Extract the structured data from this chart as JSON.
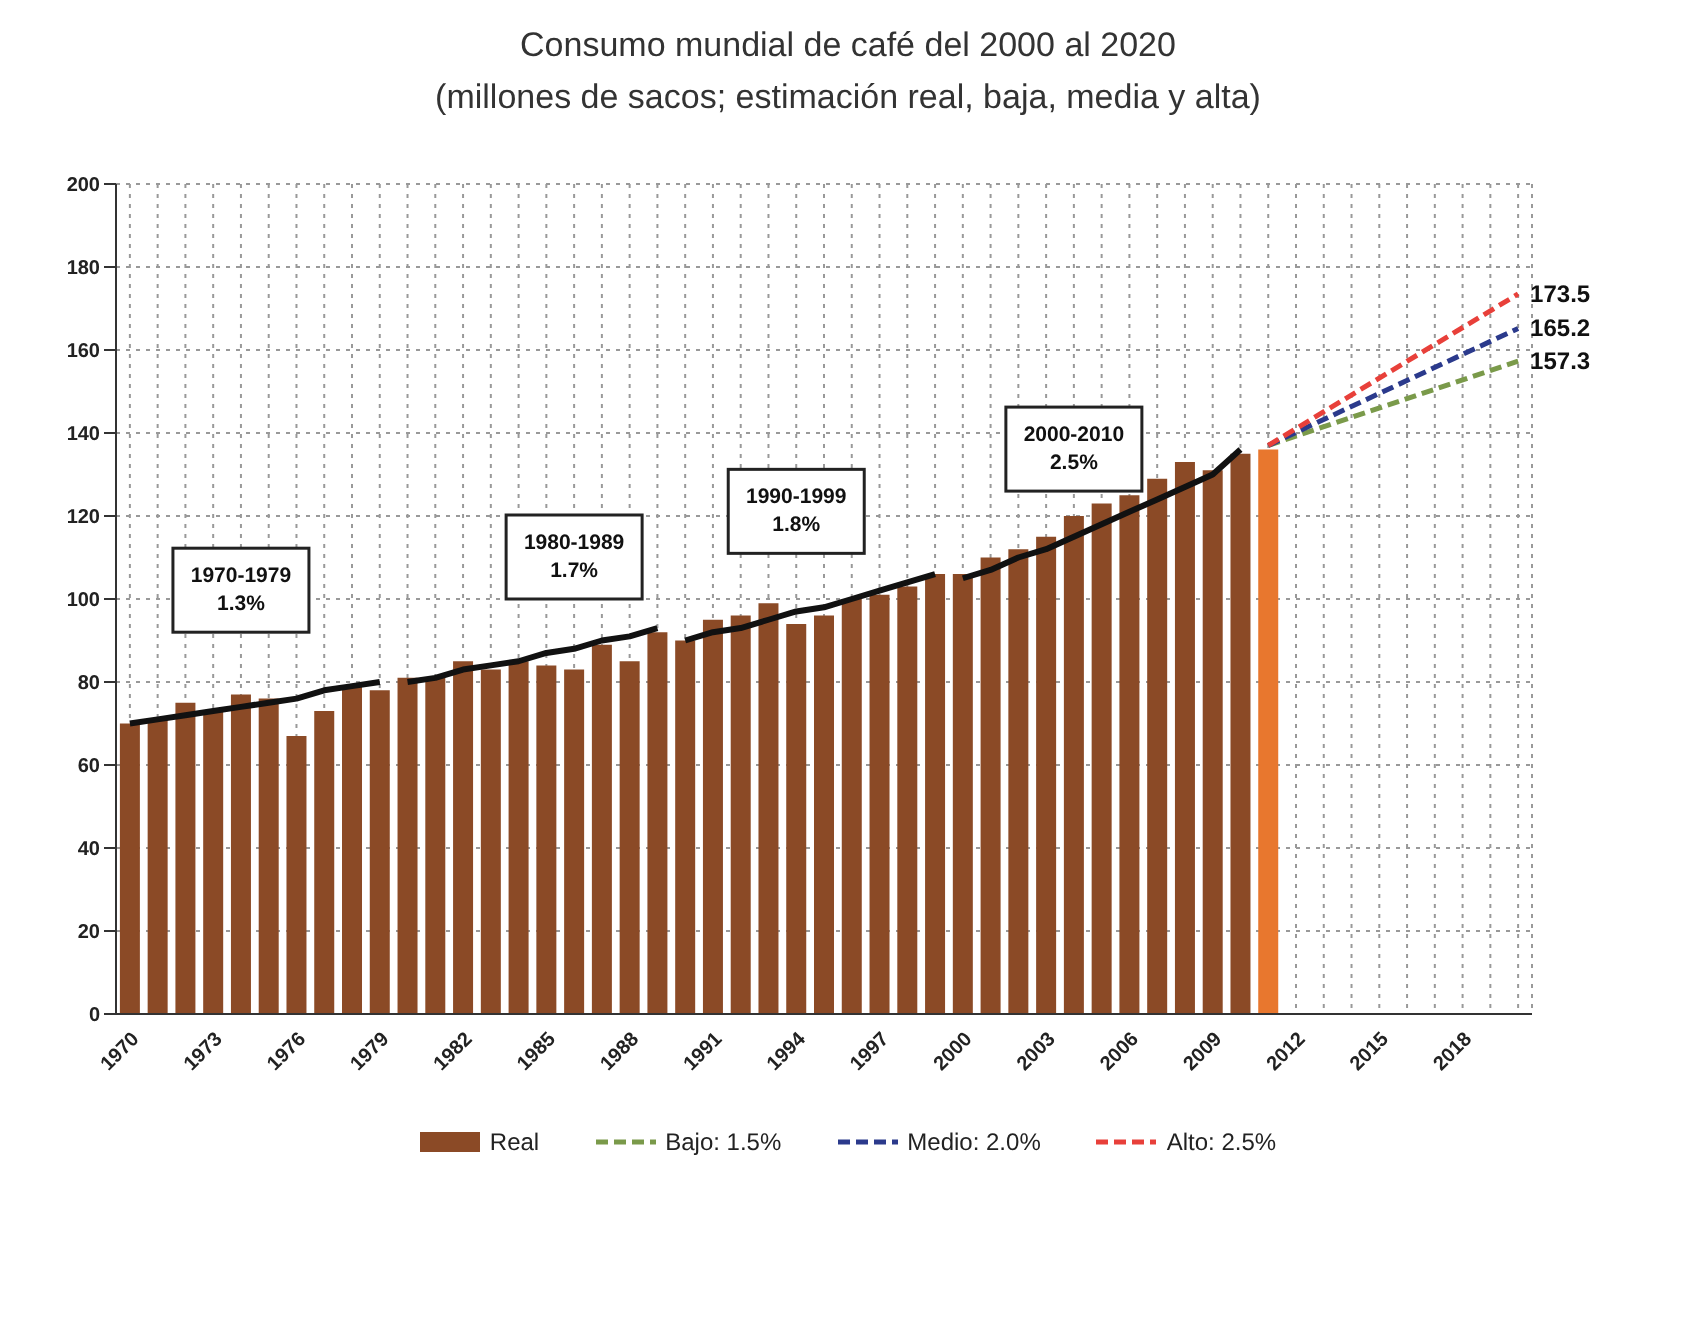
{
  "chart_data": {
    "type": "bar",
    "title": "Consumo mundial de café del 2000 al 2020",
    "subtitle": "(millones de sacos; estimación real, baja, media y alta)",
    "categories": [
      "1970",
      null,
      null,
      "1973",
      null,
      null,
      "1976",
      null,
      null,
      "1979",
      null,
      null,
      "1982",
      null,
      null,
      "1985",
      null,
      null,
      "1988",
      null,
      null,
      "1991",
      null,
      null,
      "1994",
      null,
      null,
      "1997",
      null,
      null,
      "2000",
      null,
      null,
      "2003",
      null,
      null,
      "2006",
      null,
      null,
      "2009",
      null,
      null,
      "2012",
      null,
      null,
      "2015",
      null,
      null,
      "2018",
      null,
      null
    ],
    "series": [
      {
        "name": "Real",
        "color": "#8b4a26",
        "colors": [
          "#8b4a26",
          "#8b4a26",
          "#8b4a26",
          "#8b4a26",
          "#8b4a26",
          "#8b4a26",
          "#8b4a26",
          "#8b4a26",
          "#8b4a26",
          "#8b4a26",
          "#8b4a26",
          "#8b4a26",
          "#8b4a26",
          "#8b4a26",
          "#8b4a26",
          "#8b4a26",
          "#8b4a26",
          "#8b4a26",
          "#8b4a26",
          "#8b4a26",
          "#8b4a26",
          "#8b4a26",
          "#8b4a26",
          "#8b4a26",
          "#8b4a26",
          "#8b4a26",
          "#8b4a26",
          "#8b4a26",
          "#8b4a26",
          "#8b4a26",
          "#8b4a26",
          "#8b4a26",
          "#8b4a26",
          "#8b4a26",
          "#8b4a26",
          "#8b4a26",
          "#8b4a26",
          "#8b4a26",
          "#8b4a26",
          "#8b4a26",
          "#8b4a26",
          "#e8772e",
          null,
          null,
          null,
          null,
          null,
          null,
          null,
          null,
          null
        ],
        "values": [
          70,
          71,
          75,
          73,
          77,
          76,
          67,
          73,
          79,
          78,
          81,
          81,
          85,
          83,
          85,
          84,
          83,
          89,
          85,
          92,
          90,
          95,
          96,
          99,
          94,
          96,
          100,
          101,
          103,
          106,
          106,
          110,
          112,
          115,
          120,
          123,
          125,
          129,
          133,
          131,
          135,
          136,
          null,
          null,
          null,
          null,
          null,
          null,
          null,
          null,
          null
        ]
      },
      {
        "type": "line",
        "color": "#111111",
        "values": [
          70,
          71,
          72,
          73,
          74,
          75,
          76,
          78,
          79,
          80,
          null,
          null,
          null,
          null,
          null,
          null,
          null,
          null,
          null,
          null,
          null,
          null,
          null,
          null,
          null,
          null,
          null,
          null,
          null,
          null,
          null,
          null,
          null,
          null,
          null,
          null,
          null,
          null,
          null,
          null,
          null,
          null,
          null,
          null,
          null,
          null,
          null,
          null,
          null,
          null,
          null
        ]
      },
      {
        "type": "line",
        "color": "#111111",
        "values": [
          null,
          null,
          null,
          null,
          null,
          null,
          null,
          null,
          null,
          null,
          80,
          81,
          83,
          84,
          85,
          87,
          88,
          90,
          91,
          93,
          null,
          null,
          null,
          null,
          null,
          null,
          null,
          null,
          null,
          null,
          null,
          null,
          null,
          null,
          null,
          null,
          null,
          null,
          null,
          null,
          null,
          null,
          null,
          null,
          null,
          null,
          null,
          null,
          null,
          null,
          null
        ]
      },
      {
        "type": "line",
        "color": "#111111",
        "values": [
          null,
          null,
          null,
          null,
          null,
          null,
          null,
          null,
          null,
          null,
          null,
          null,
          null,
          null,
          null,
          null,
          null,
          null,
          null,
          null,
          90,
          92,
          93,
          95,
          97,
          98,
          100,
          102,
          104,
          106,
          null,
          null,
          null,
          null,
          null,
          null,
          null,
          null,
          null,
          null,
          null,
          null,
          null,
          null,
          null,
          null,
          null,
          null,
          null,
          null,
          null
        ]
      },
      {
        "type": "line",
        "color": "#111111",
        "values": [
          null,
          null,
          null,
          null,
          null,
          null,
          null,
          null,
          null,
          null,
          null,
          null,
          null,
          null,
          null,
          null,
          null,
          null,
          null,
          null,
          null,
          null,
          null,
          null,
          null,
          null,
          null,
          null,
          null,
          null,
          105,
          107,
          110,
          112,
          115,
          118,
          121,
          124,
          127,
          130,
          136,
          null,
          null,
          null,
          null,
          null,
          null,
          null,
          null,
          null,
          null
        ]
      },
      {
        "name": "Bajo: 1.5%",
        "type": "line",
        "line_style": "dashed",
        "color": "#7a9a4a",
        "values": [
          null,
          null,
          null,
          null,
          null,
          null,
          null,
          null,
          null,
          null,
          null,
          null,
          null,
          null,
          null,
          null,
          null,
          null,
          null,
          null,
          null,
          null,
          null,
          null,
          null,
          null,
          null,
          null,
          null,
          null,
          null,
          null,
          null,
          null,
          null,
          null,
          null,
          null,
          null,
          null,
          null,
          137,
          null,
          null,
          null,
          null,
          null,
          null,
          null,
          null,
          157.3
        ],
        "value_labels": [
          null,
          null,
          null,
          null,
          null,
          null,
          null,
          null,
          null,
          null,
          null,
          null,
          null,
          null,
          null,
          null,
          null,
          null,
          null,
          null,
          null,
          null,
          null,
          null,
          null,
          null,
          null,
          null,
          null,
          null,
          null,
          null,
          null,
          null,
          null,
          null,
          null,
          null,
          null,
          null,
          null,
          null,
          null,
          null,
          null,
          null,
          null,
          null,
          null,
          null,
          "157.3"
        ]
      },
      {
        "name": "Medio: 2.0%",
        "type": "line",
        "line_style": "dashed",
        "color": "#2b3a8c",
        "values": [
          null,
          null,
          null,
          null,
          null,
          null,
          null,
          null,
          null,
          null,
          null,
          null,
          null,
          null,
          null,
          null,
          null,
          null,
          null,
          null,
          null,
          null,
          null,
          null,
          null,
          null,
          null,
          null,
          null,
          null,
          null,
          null,
          null,
          null,
          null,
          null,
          null,
          null,
          null,
          null,
          null,
          137,
          null,
          null,
          null,
          null,
          null,
          null,
          null,
          null,
          165.2
        ],
        "value_labels": [
          null,
          null,
          null,
          null,
          null,
          null,
          null,
          null,
          null,
          null,
          null,
          null,
          null,
          null,
          null,
          null,
          null,
          null,
          null,
          null,
          null,
          null,
          null,
          null,
          null,
          null,
          null,
          null,
          null,
          null,
          null,
          null,
          null,
          null,
          null,
          null,
          null,
          null,
          null,
          null,
          null,
          null,
          null,
          null,
          null,
          null,
          null,
          null,
          null,
          null,
          "165.2"
        ]
      },
      {
        "name": "Alto: 2.5%",
        "type": "line",
        "line_style": "dashed",
        "color": "#e8403a",
        "values": [
          null,
          null,
          null,
          null,
          null,
          null,
          null,
          null,
          null,
          null,
          null,
          null,
          null,
          null,
          null,
          null,
          null,
          null,
          null,
          null,
          null,
          null,
          null,
          null,
          null,
          null,
          null,
          null,
          null,
          null,
          null,
          null,
          null,
          null,
          null,
          null,
          null,
          null,
          null,
          null,
          null,
          137,
          null,
          null,
          null,
          null,
          null,
          null,
          null,
          null,
          173.5
        ],
        "value_labels": [
          null,
          null,
          null,
          null,
          null,
          null,
          null,
          null,
          null,
          null,
          null,
          null,
          null,
          null,
          null,
          null,
          null,
          null,
          null,
          null,
          null,
          null,
          null,
          null,
          null,
          null,
          null,
          null,
          null,
          null,
          null,
          null,
          null,
          null,
          null,
          null,
          null,
          null,
          null,
          null,
          null,
          null,
          null,
          null,
          null,
          null,
          null,
          null,
          null,
          null,
          "173.5"
        ]
      }
    ],
    "annotations": [
      "1970-1979\n1.3%",
      "1980-1989\n1.7%",
      "1990-1999\n1.8%",
      "2000-2010\n2.5%"
    ],
    "ylim": [
      0,
      200
    ],
    "yticks": [
      0,
      20,
      40,
      60,
      80,
      100,
      120,
      140,
      160,
      180,
      200
    ],
    "grid": true,
    "legend": "bottom",
    "marker": "none"
  }
}
